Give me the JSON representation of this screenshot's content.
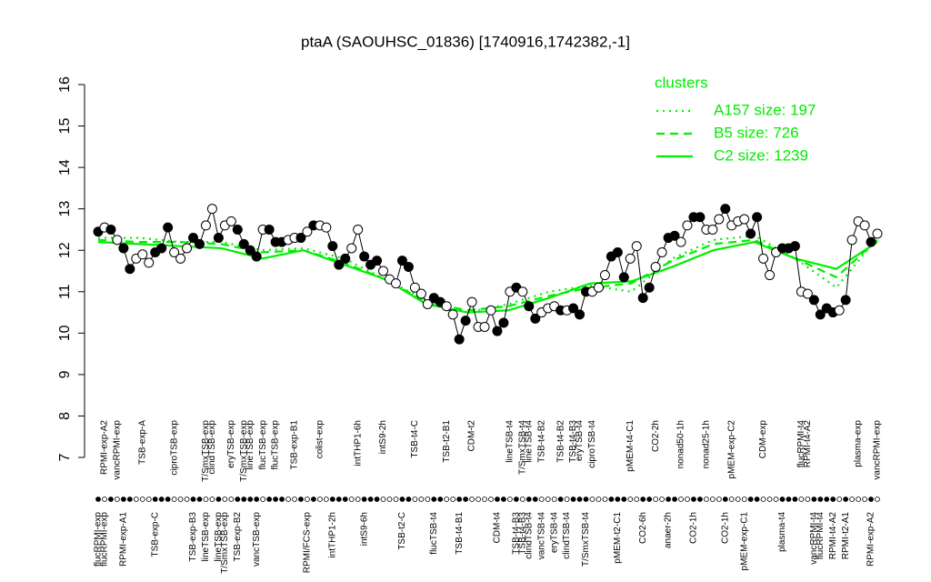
{
  "chart_data": {
    "type": "line",
    "title": "ptaA (SAOUHSC_01836) [1740916,1742382,-1]",
    "ylim": [
      7,
      16
    ],
    "yticks": [
      7,
      8,
      9,
      10,
      11,
      12,
      13,
      14,
      15,
      16
    ],
    "color": "#000000",
    "values": [
      12.45,
      12.55,
      12.5,
      12.25,
      12.05,
      11.55,
      11.8,
      11.9,
      11.7,
      11.95,
      12.05,
      12.55,
      11.95,
      11.8,
      12.05,
      12.3,
      12.15,
      12.6,
      13.0,
      12.3,
      12.6,
      12.7,
      12.5,
      12.15,
      12.0,
      11.85,
      12.5,
      12.5,
      12.2,
      12.2,
      12.25,
      12.3,
      12.3,
      12.45,
      12.6,
      12.6,
      12.55,
      12.1,
      11.65,
      11.8,
      12.05,
      12.5,
      11.85,
      11.65,
      11.75,
      11.5,
      11.3,
      11.2,
      11.75,
      11.6,
      11.1,
      10.95,
      10.7,
      10.85,
      10.75,
      10.65,
      10.45,
      9.85,
      10.3,
      10.75,
      10.15,
      10.15,
      10.55,
      10.05,
      10.25,
      11.0,
      11.1,
      11.0,
      10.65,
      10.35,
      10.5,
      10.6,
      10.65,
      10.55,
      10.55,
      10.6,
      10.45,
      11.0,
      11.0,
      11.1,
      11.4,
      11.85,
      11.95,
      11.35,
      11.8,
      12.1,
      10.85,
      11.1,
      11.6,
      11.95,
      12.3,
      12.35,
      12.2,
      12.6,
      12.8,
      12.8,
      12.5,
      12.5,
      12.75,
      13.0,
      12.6,
      12.7,
      12.75,
      12.4,
      12.8,
      11.8,
      11.4,
      11.95,
      12.05,
      12.05,
      12.1,
      11.0,
      10.95,
      10.8,
      10.45,
      10.6,
      10.5,
      10.55,
      10.8,
      12.25,
      12.7,
      12.6,
      12.2,
      12.4
    ],
    "filled": [
      true,
      false,
      true,
      false,
      true,
      true,
      false,
      false,
      false,
      true,
      true,
      true,
      false,
      false,
      false,
      true,
      true,
      false,
      false,
      true,
      false,
      false,
      true,
      true,
      true,
      true,
      false,
      true,
      true,
      true,
      false,
      false,
      true,
      false,
      true,
      false,
      false,
      true,
      true,
      true,
      false,
      false,
      true,
      true,
      true,
      false,
      false,
      false,
      true,
      true,
      false,
      false,
      false,
      true,
      true,
      false,
      false,
      true,
      true,
      false,
      false,
      false,
      false,
      true,
      true,
      false,
      true,
      false,
      true,
      true,
      false,
      false,
      false,
      true,
      false,
      true,
      true,
      true,
      false,
      false,
      false,
      true,
      true,
      true,
      false,
      false,
      true,
      true,
      false,
      false,
      true,
      true,
      false,
      false,
      true,
      true,
      false,
      false,
      false,
      true,
      false,
      false,
      false,
      true,
      true,
      false,
      false,
      false,
      true,
      true,
      true,
      false,
      false,
      true,
      true,
      true,
      true,
      false,
      true,
      false,
      false,
      false,
      true,
      false
    ],
    "top_labels": [
      null,
      "RPMI-exp-A2",
      null,
      "vancRPMI-exp",
      null,
      null,
      null,
      "TSB-exp-A",
      null,
      null,
      null,
      null,
      "ciproTSB-exp",
      null,
      null,
      null,
      null,
      "T/SmxTSB-exp",
      "clindTSB-exp",
      null,
      null,
      "eryTSB-exp",
      null,
      "T/SmxTSB-exp",
      "lineTSB-exp",
      null,
      "flucTSB-exp",
      null,
      "flucTSB-exp",
      null,
      null,
      "TSB-exp-B1",
      null,
      null,
      null,
      "colist-exp",
      null,
      null,
      null,
      null,
      null,
      "intTHP1-6h",
      null,
      null,
      null,
      "intS9-2h",
      null,
      null,
      null,
      null,
      "TSB-t4-C",
      null,
      null,
      null,
      null,
      "TSB-t2-B1",
      null,
      null,
      null,
      "CDM-t2",
      null,
      null,
      null,
      null,
      null,
      "lineTSB-t4",
      null,
      "T/SmxTSB-t4",
      "lineTSB-t4",
      null,
      "TSB-t4-B2",
      null,
      null,
      "TSB-t4-B2",
      null,
      "TSB-t4-B3",
      "eryTSB-t4",
      null,
      "ciproTSB-t4",
      null,
      null,
      null,
      null,
      null,
      "pMEM-t4-C1",
      null,
      null,
      null,
      "CO2-2h",
      null,
      null,
      null,
      "nonad50-1h",
      null,
      null,
      null,
      "nonad25-1h",
      null,
      null,
      null,
      "pMEM-exp-C2",
      null,
      null,
      null,
      null,
      "CDM-exp",
      null,
      null,
      null,
      null,
      null,
      "flucRPMI-t4",
      "RPMI-t4-A2",
      null,
      null,
      null,
      null,
      null,
      null,
      null,
      "plasma-exp",
      null,
      null,
      "vancRPMI-exp"
    ],
    "bottom_labels": [
      "flucRPMI-exp",
      "flucRPMI-exp",
      null,
      null,
      "RPMI-exp-A1",
      null,
      null,
      null,
      null,
      "TSB-exp-C",
      null,
      null,
      null,
      null,
      null,
      "TSB-exp-B3",
      null,
      "lineTSB-exp",
      null,
      "lineTSB-exp",
      "T/SmxTSB-exp",
      null,
      "TSB-exp-B2",
      null,
      null,
      "vancTSB-exp",
      null,
      null,
      null,
      null,
      null,
      null,
      null,
      "RPMI/FCS-exp",
      null,
      null,
      null,
      "intTHP1-2h",
      null,
      null,
      null,
      null,
      "intS9-6h",
      null,
      null,
      null,
      null,
      null,
      "TSB-t2-C",
      null,
      null,
      null,
      null,
      "flucTSB-t4",
      null,
      null,
      null,
      "TSB-t4-B1",
      null,
      null,
      null,
      null,
      null,
      "CDM-t4",
      null,
      null,
      "TSB-t4-B3",
      "TSB-t4-B3",
      "clindTSB-t4",
      null,
      "vancTSB-t4",
      null,
      "eryTSB-t4",
      null,
      "clindTSB-t4",
      null,
      null,
      "T/SmxTSB-t4",
      null,
      null,
      null,
      null,
      "pMEM-t2-C1",
      null,
      null,
      null,
      "CO2-6h",
      null,
      null,
      null,
      "anaer-2h",
      null,
      null,
      null,
      "CO2-1h",
      null,
      null,
      null,
      null,
      "CO2-1h",
      null,
      null,
      "pMEM-exp-C1",
      null,
      null,
      null,
      null,
      null,
      "plasma-t4",
      null,
      null,
      null,
      null,
      "vancRPMI-t4",
      "flucRPMI-t4",
      null,
      "RPMI-t4-A2",
      null,
      "RPMI-t2-A1",
      null,
      null,
      null,
      "RPMI-exp-A2",
      null
    ],
    "legend_title": "clusters",
    "legend": "topright",
    "series": [
      {
        "name": "A157 size: 197",
        "color": "#00ee00",
        "style": "dotted",
        "values": [
          12.3,
          12.3,
          12.2,
          12.2,
          12.0,
          12.05,
          11.8,
          11.3,
          10.8,
          10.5,
          10.7,
          11.0,
          11.15,
          11.0,
          11.8,
          12.25,
          12.35,
          11.8,
          11.1,
          12.3
        ]
      },
      {
        "name": "B5 size: 726",
        "color": "#00ee00",
        "style": "dashed",
        "values": [
          12.25,
          12.2,
          12.2,
          12.15,
          11.95,
          12.0,
          11.7,
          11.3,
          10.75,
          10.55,
          10.65,
          10.9,
          11.1,
          11.2,
          11.75,
          12.15,
          12.25,
          11.8,
          11.35,
          12.25
        ]
      },
      {
        "name": "C2 size: 1239",
        "color": "#00ee00",
        "style": "solid",
        "values": [
          12.2,
          12.15,
          12.1,
          12.05,
          11.8,
          12.0,
          11.65,
          11.3,
          10.7,
          10.5,
          10.55,
          10.85,
          11.2,
          11.25,
          11.6,
          12.0,
          12.2,
          11.8,
          11.55,
          12.2
        ]
      }
    ]
  }
}
